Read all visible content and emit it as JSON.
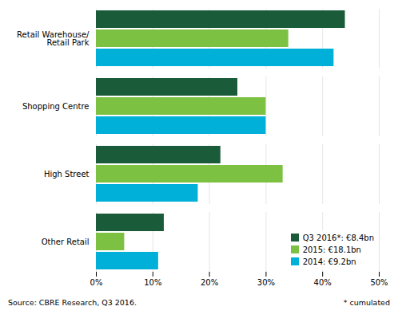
{
  "chart_data": {
    "type": "bar",
    "orientation": "horizontal",
    "categories": [
      "Retail Warehouse/\nRetail Park",
      "Shopping Centre",
      "High Street",
      "Other Retail"
    ],
    "series": [
      {
        "name": "Q3 2016*: €8.4bn",
        "color": "#1a5c3a",
        "values": [
          44,
          25,
          22,
          12
        ]
      },
      {
        "name": "2015: €18.1bn",
        "color": "#7dc142",
        "values": [
          34,
          30,
          33,
          5
        ]
      },
      {
        "name": "2014: €9.2bn",
        "color": "#00b0d8",
        "values": [
          42,
          30,
          18,
          11
        ]
      }
    ],
    "xlim": [
      0,
      50
    ],
    "xticks": [
      {
        "value": 0,
        "label": "0%"
      },
      {
        "value": 10,
        "label": "10%"
      },
      {
        "value": 20,
        "label": "20%"
      },
      {
        "value": 30,
        "label": "30%"
      },
      {
        "value": 40,
        "label": "40%"
      },
      {
        "value": 50,
        "label": "50%"
      }
    ],
    "grid": true,
    "legend": "lower right",
    "annotations": [
      "Source: CBRE Research, Q3 2016.",
      "* cumulated"
    ]
  }
}
